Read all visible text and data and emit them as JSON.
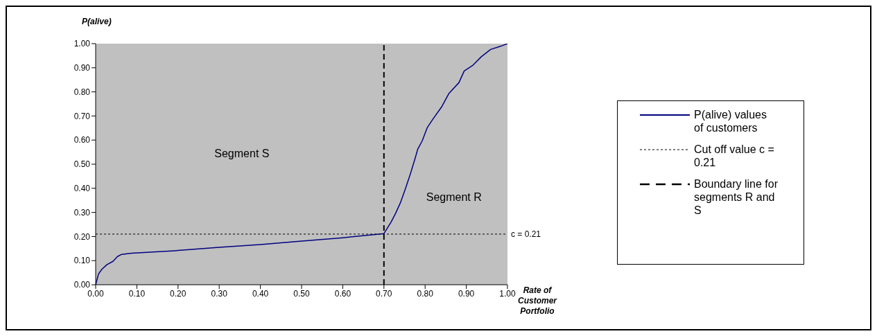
{
  "chart_data": {
    "type": "line",
    "xlabel": "Rate of Customer Portfolio",
    "ylabel": "P(alive)",
    "xlim": [
      0,
      1
    ],
    "ylim": [
      0,
      1
    ],
    "xticks": [
      {
        "value": 0,
        "label": "0.00"
      },
      {
        "value": 0.1,
        "label": "0.10"
      },
      {
        "value": 0.2,
        "label": "0.20"
      },
      {
        "value": 0.3,
        "label": "0.30"
      },
      {
        "value": 0.4,
        "label": "0.40"
      },
      {
        "value": 0.5,
        "label": "0.50"
      },
      {
        "value": 0.6,
        "label": "0.60"
      },
      {
        "value": 0.7,
        "label": "0.70"
      },
      {
        "value": 0.8,
        "label": "0.80"
      },
      {
        "value": 0.9,
        "label": "0.90"
      },
      {
        "value": 1,
        "label": "1.00"
      }
    ],
    "yticks": [
      {
        "value": 0,
        "label": "0.00"
      },
      {
        "value": 0.1,
        "label": "0.10"
      },
      {
        "value": 0.2,
        "label": "0.20"
      },
      {
        "value": 0.3,
        "label": "0.30"
      },
      {
        "value": 0.4,
        "label": "0.40"
      },
      {
        "value": 0.5,
        "label": "0.50"
      },
      {
        "value": 0.6,
        "label": "0.60"
      },
      {
        "value": 0.7,
        "label": "0.70"
      },
      {
        "value": 0.8,
        "label": "0.80"
      },
      {
        "value": 0.9,
        "label": "0.90"
      },
      {
        "value": 1,
        "label": "1.00"
      }
    ],
    "grid": false,
    "legend": "right",
    "marker": "none",
    "line_style": "solid",
    "series": [
      {
        "name": "P(alive) values of customers",
        "color": "#000080",
        "x": [
          0,
          0.007,
          0.015,
          0.027,
          0.042,
          0.053,
          0.063,
          0.087,
          0.2,
          0.3,
          0.4,
          0.5,
          0.6,
          0.7,
          0.717,
          0.728,
          0.74,
          0.753,
          0.765,
          0.776,
          0.782,
          0.793,
          0.805,
          0.819,
          0.841,
          0.858,
          0.882,
          0.895,
          0.915,
          0.936,
          0.959,
          0.983,
          1
        ],
        "values": [
          0,
          0.045,
          0.064,
          0.083,
          0.097,
          0.117,
          0.126,
          0.131,
          0.142,
          0.155,
          0.167,
          0.181,
          0.195,
          0.212,
          0.259,
          0.295,
          0.34,
          0.402,
          0.464,
          0.526,
          0.562,
          0.597,
          0.651,
          0.687,
          0.74,
          0.794,
          0.838,
          0.887,
          0.909,
          0.945,
          0.976,
          0.989,
          1
        ]
      }
    ],
    "ref_lines": [
      {
        "axis": "y",
        "value": 0.21,
        "label": "c = 0.21",
        "color": "#000000",
        "line_style": "dotted"
      },
      {
        "axis": "x",
        "value": 0.7,
        "label": null,
        "color": "#000000",
        "line_style": "dashed"
      }
    ],
    "annotations": [
      "Cut off value c = 0.21",
      "Boundary line for segments R and S",
      "Segment S",
      "Segment R"
    ]
  }
}
